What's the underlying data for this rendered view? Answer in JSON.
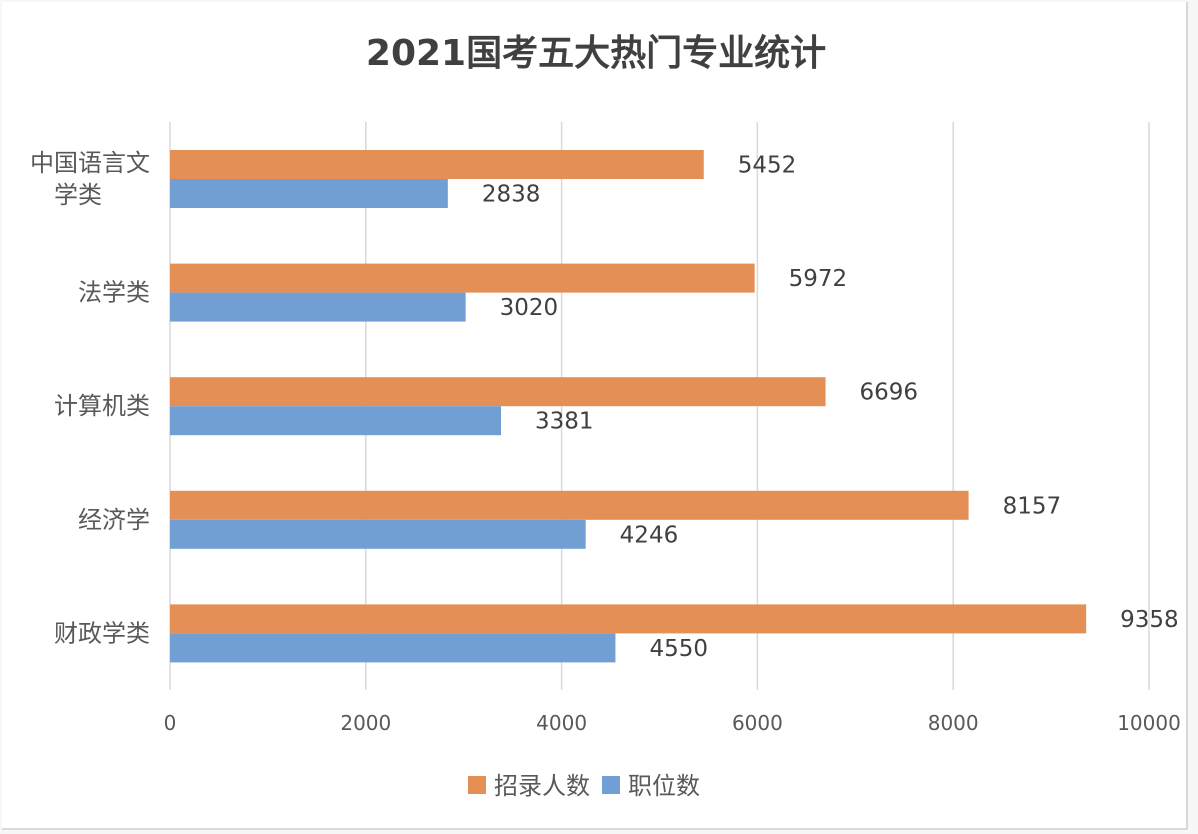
{
  "chart_data": {
    "type": "bar",
    "orientation": "horizontal",
    "title": "2021国考五大热门专业统计",
    "categories": [
      "中国语言文学类",
      "法学类",
      "计算机类",
      "经济学",
      "财政学类"
    ],
    "category_label_lines": [
      [
        "中国语言文",
        "学类"
      ],
      [
        "法学类"
      ],
      [
        "计算机类"
      ],
      [
        "经济学"
      ],
      [
        "财政学类"
      ]
    ],
    "series": [
      {
        "name": "招录人数",
        "values": [
          5452,
          5972,
          6696,
          8157,
          9358
        ],
        "color": "#E48F56"
      },
      {
        "name": "职位数",
        "values": [
          2838,
          3020,
          3381,
          4246,
          4550
        ],
        "color": "#719FD4"
      }
    ],
    "x_ticks": [
      "0",
      "2000",
      "4000",
      "6000",
      "8000",
      "10000"
    ],
    "xlim": [
      0,
      10000
    ],
    "grid": true,
    "legend_position": "bottom",
    "data_labels": true
  }
}
